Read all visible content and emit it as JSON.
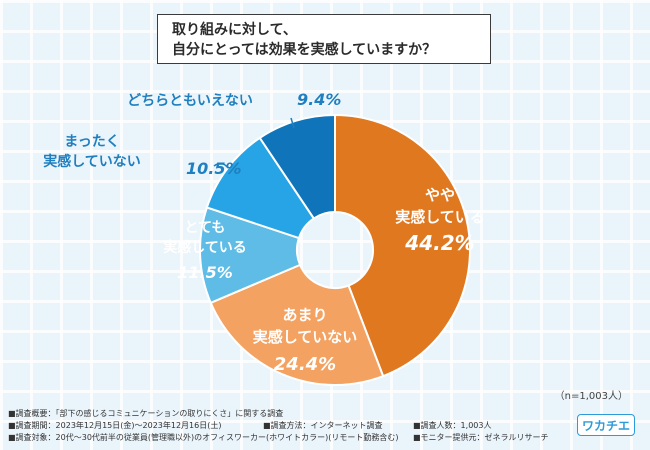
{
  "title": {
    "line1": "取り組みに対して、",
    "line2": "自分にとっては効果を実感していますか？"
  },
  "chart_data": {
    "type": "pie",
    "title": "取り組みに対して、自分にとっては効果を実感していますか？",
    "sample": "（n=1,003人）",
    "slices": [
      {
        "label_lines": [
          "やや",
          "実感している"
        ],
        "value": 44.2,
        "display": "44.2%",
        "color": "#e07820"
      },
      {
        "label_lines": [
          "あまり",
          "実感していない"
        ],
        "value": 24.4,
        "display": "24.4%",
        "color": "#f3a262"
      },
      {
        "label_lines": [
          "とても",
          "実感している"
        ],
        "value": 11.5,
        "display": "11.5%",
        "color": "#5ebce6"
      },
      {
        "label_lines": [
          "まったく",
          "実感していない"
        ],
        "value": 10.5,
        "display": "10.5%",
        "color": "#27a4e5"
      },
      {
        "label_lines": [
          "どちらともいえない"
        ],
        "value": 9.4,
        "display": "9.4%",
        "color": "#0f74b9"
      }
    ]
  },
  "footer": {
    "overview": "■調査概要：「部下の感じるコミュニケーションの取りにくさ」に関する調査",
    "period": "■調査期間：2023年12月15日(金)〜2023年12月16日(土)",
    "method": "■調査方法：インターネット調査",
    "count": "■調査人数：1,003人",
    "target": "■調査対象：20代〜30代前半の従業員(管理職以外)のオフィスワーカー(ホワイトカラー)(リモート勤務含む)",
    "monitor": "■モニター提供元：ゼネラルリサーチ"
  },
  "logo": "ワカチエ"
}
